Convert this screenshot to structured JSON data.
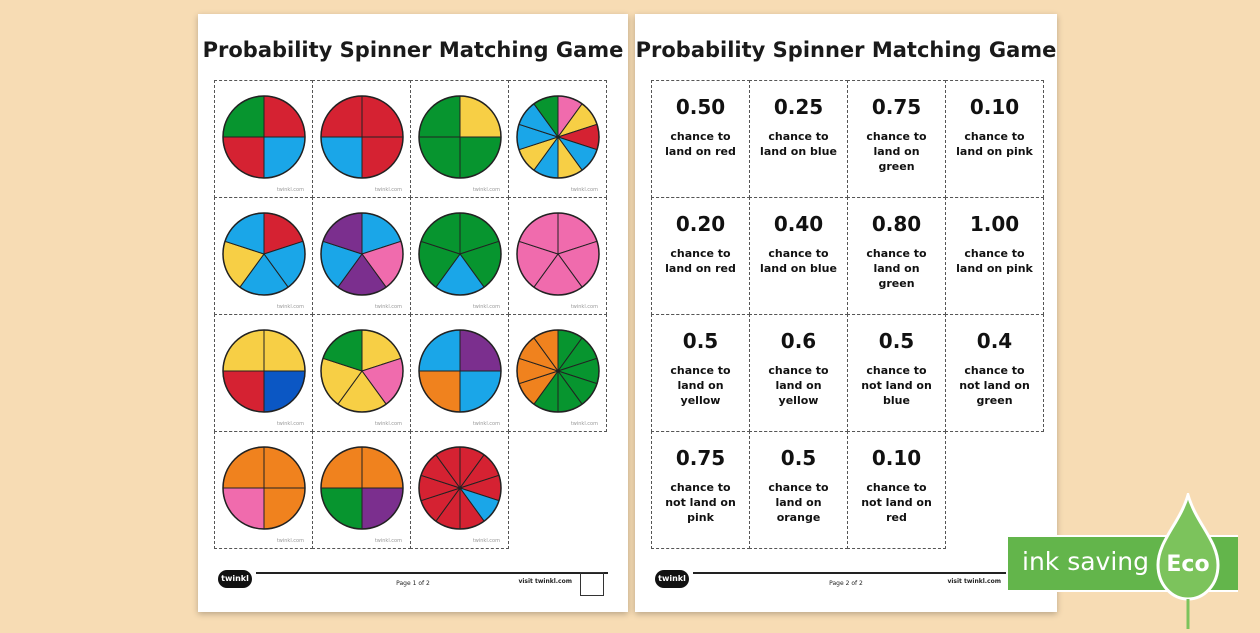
{
  "page1": {
    "title": "Probability Spinner Matching Game",
    "watermark": "twinkl.com",
    "spinners": [
      [
        "#d52232",
        "#1aa6e8",
        "#d52232",
        "#07952f"
      ],
      [
        "#d52232",
        "#d52232",
        "#1aa6e8",
        "#d52232"
      ],
      [
        "#f7cf45",
        "#07952f",
        "#07952f",
        "#07952f"
      ],
      [
        "#f06bad",
        "#f7cf45",
        "#d52232",
        "#1aa6e8",
        "#f7cf45",
        "#1aa6e8",
        "#f7cf45",
        "#1aa6e8",
        "#1aa6e8",
        "#07952f"
      ],
      [
        "#d52232",
        "#1aa6e8",
        "#1aa6e8",
        "#f7cf45",
        "#1aa6e8"
      ],
      [
        "#1aa6e8",
        "#f06bad",
        "#7b2f8e",
        "#1aa6e8",
        "#7b2f8e"
      ],
      [
        "#07952f",
        "#07952f",
        "#1aa6e8",
        "#07952f",
        "#07952f"
      ],
      [
        "#f06bad",
        "#f06bad",
        "#f06bad",
        "#f06bad",
        "#f06bad"
      ],
      [
        "#f7cf45",
        "#0b57c4",
        "#d52232",
        "#f7cf45"
      ],
      [
        "#f7cf45",
        "#f06bad",
        "#f7cf45",
        "#f7cf45",
        "#07952f"
      ],
      [
        "#7b2f8e",
        "#1aa6e8",
        "#f0821e",
        "#1aa6e8"
      ],
      [
        "#07952f",
        "#07952f",
        "#07952f",
        "#07952f",
        "#07952f",
        "#07952f",
        "#f0821e",
        "#f0821e",
        "#f0821e",
        "#f0821e"
      ],
      [
        "#f0821e",
        "#f0821e",
        "#f06bad",
        "#f0821e"
      ],
      [
        "#f0821e",
        "#7b2f8e",
        "#07952f",
        "#f0821e"
      ],
      [
        "#d52232",
        "#d52232",
        "#d52232",
        "#1aa6e8",
        "#d52232",
        "#d52232",
        "#d52232",
        "#d52232",
        "#d52232",
        "#d52232"
      ]
    ],
    "page_label": "Page 1 of 2"
  },
  "page2": {
    "title": "Probability Spinner Matching Game",
    "cards": [
      {
        "value": "0.50",
        "text": "chance to\nland on red"
      },
      {
        "value": "0.25",
        "text": "chance to\nland on blue"
      },
      {
        "value": "0.75",
        "text": "chance to\nland on\ngreen"
      },
      {
        "value": "0.10",
        "text": "chance to\nland on pink"
      },
      {
        "value": "0.20",
        "text": "chance to\nland on red"
      },
      {
        "value": "0.40",
        "text": "chance to\nland on blue"
      },
      {
        "value": "0.80",
        "text": "chance to\nland on\ngreen"
      },
      {
        "value": "1.00",
        "text": "chance to\nland on pink"
      },
      {
        "value": "0.5",
        "text": "chance to\nland on\nyellow"
      },
      {
        "value": "0.6",
        "text": "chance to\nland on\nyellow"
      },
      {
        "value": "0.5",
        "text": "chance to\nnot land on\nblue"
      },
      {
        "value": "0.4",
        "text": "chance to\nnot land on\ngreen"
      },
      {
        "value": "0.75",
        "text": "chance to\nnot land on\npink"
      },
      {
        "value": "0.5",
        "text": "chance to\nland on\norange"
      },
      {
        "value": "0.10",
        "text": "chance to\nnot land on\nred"
      }
    ],
    "page_label": "Page 2 of 2"
  },
  "footer": {
    "logo_text": "twinkl",
    "visit_text": "visit twinkl.com"
  },
  "eco_banner": {
    "label": "ink saving",
    "badge": "Eco",
    "color": "#63b54b"
  }
}
